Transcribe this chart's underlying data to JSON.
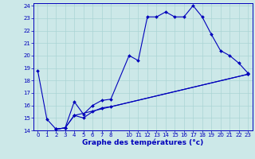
{
  "xlabel": "Graphe des températures (°c)",
  "background_color": "#cce8e8",
  "grid_color": "#aad4d4",
  "line_color": "#0000bb",
  "spine_color": "#0000bb",
  "xlim": [
    -0.5,
    23.5
  ],
  "ylim": [
    14,
    24.2
  ],
  "yticks": [
    14,
    15,
    16,
    17,
    18,
    19,
    20,
    21,
    22,
    23,
    24
  ],
  "xticks": [
    0,
    1,
    2,
    3,
    4,
    5,
    6,
    7,
    8,
    10,
    11,
    12,
    13,
    14,
    15,
    16,
    17,
    18,
    19,
    20,
    21,
    22,
    23
  ],
  "xtick_labels": [
    "0",
    "1",
    "2",
    "3",
    "4",
    "5",
    "6",
    "7",
    "8",
    "10",
    "11",
    "12",
    "13",
    "14",
    "15",
    "16",
    "17",
    "18",
    "19",
    "20",
    "21",
    "22",
    "23"
  ],
  "line1_x": [
    0,
    1,
    2,
    3,
    4,
    5,
    6,
    7,
    8,
    10,
    11,
    12,
    13,
    14,
    15,
    16,
    17,
    18,
    19,
    20,
    21,
    22,
    23
  ],
  "line1_y": [
    18.8,
    14.9,
    14.1,
    14.2,
    16.3,
    15.3,
    16.0,
    16.4,
    16.5,
    20.0,
    19.6,
    23.1,
    23.1,
    23.5,
    23.1,
    23.1,
    24.0,
    23.1,
    21.7,
    20.4,
    20.0,
    19.4,
    18.6
  ],
  "line2_x": [
    2,
    3,
    4,
    5,
    6,
    7,
    8,
    23
  ],
  "line2_y": [
    14.1,
    14.2,
    15.2,
    15.0,
    15.5,
    15.8,
    15.9,
    18.5
  ],
  "line3_x": [
    2,
    3,
    4,
    23
  ],
  "line3_y": [
    14.1,
    14.2,
    15.2,
    18.5
  ],
  "tick_fontsize": 5,
  "xlabel_fontsize": 6.5
}
